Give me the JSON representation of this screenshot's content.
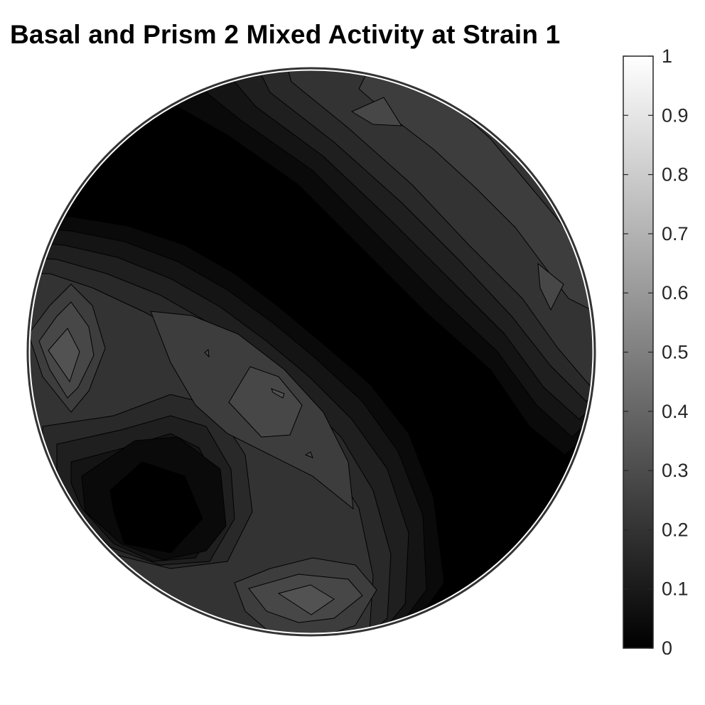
{
  "chart_data": {
    "type": "heatmap",
    "subtype": "filled-contour pole figure",
    "title": "Basal and Prism 2 Mixed Activity at Strain 1",
    "colormap": "gray",
    "colorbar": {
      "placement": "right",
      "range": [
        0,
        1
      ],
      "ticks": [
        {
          "value": 0,
          "label": "0"
        },
        {
          "value": 0.1,
          "label": "0.1"
        },
        {
          "value": 0.2,
          "label": "0.2"
        },
        {
          "value": 0.3,
          "label": "0.3"
        },
        {
          "value": 0.4,
          "label": "0.4"
        },
        {
          "value": 0.5,
          "label": "0.5"
        },
        {
          "value": 0.6,
          "label": "0.6"
        },
        {
          "value": 0.7,
          "label": "0.7"
        },
        {
          "value": 0.8,
          "label": "0.8"
        },
        {
          "value": 0.9,
          "label": "0.9"
        },
        {
          "value": 1,
          "label": "1"
        }
      ]
    },
    "contour_levels": [
      0.04,
      0.08,
      0.12,
      0.16,
      0.2,
      0.24,
      0.28,
      0.32
    ],
    "value_range_observed": [
      0,
      0.36
    ]
  }
}
